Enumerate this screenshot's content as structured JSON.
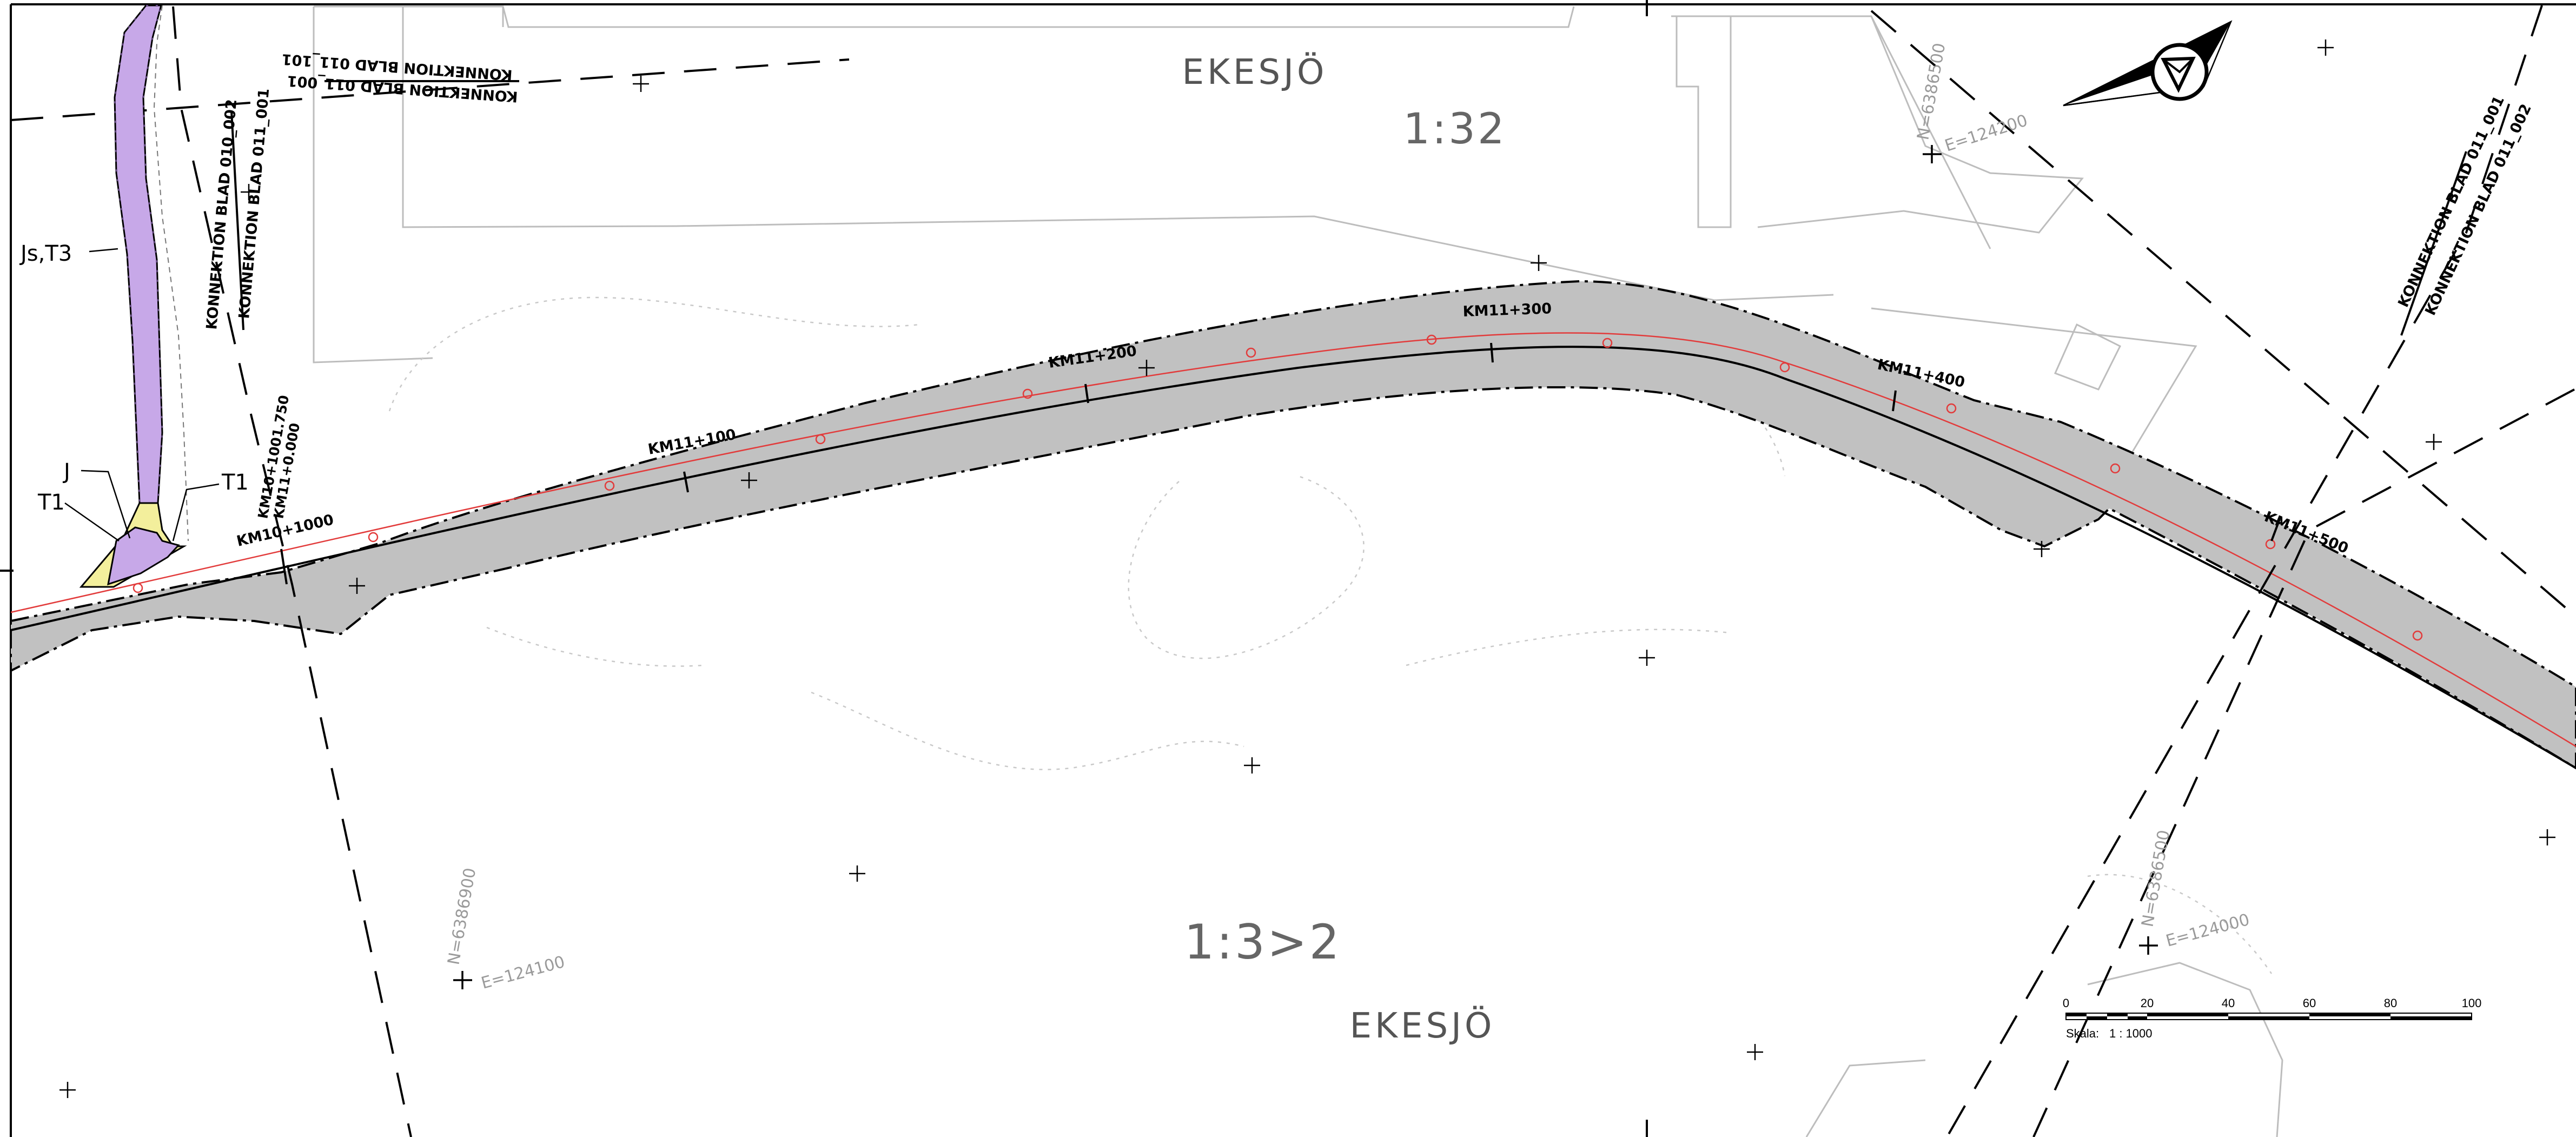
{
  "map": {
    "place_names": {
      "top": "EKESJÖ",
      "bottom": "EKESJÖ"
    },
    "slopes": {
      "top": "1:32",
      "bottom": "1:3>2"
    },
    "km_labels": [
      "KM10+1000",
      "KM11+100",
      "KM11+200",
      "KM11+300",
      "KM11+400",
      "KM11+500"
    ],
    "km_start_labels": {
      "prev": "KM10+1001.750",
      "next": "KM11+0.000"
    },
    "connections": {
      "top_left_a": "KONNEKTION BLAD 011_101",
      "top_left_b": "KONNEKTION BLAD 011_001",
      "vertical_a": "KONNEKTION BLAD 010_002",
      "vertical_b": "KONNEKTION BLAD 011_001",
      "right_a": "KONNEKTION BLAD 011_001",
      "right_b": "KONNEKTION BLAD 011_002"
    },
    "annotations": {
      "js_t3": "Js,T3",
      "j": "J",
      "t1_left": "T1",
      "t1_right": "T1"
    },
    "grid_labels": {
      "n_top_right": "N=6386500",
      "e_top_right": "E=124200",
      "n_bottom_left": "N=6386900",
      "e_bottom_left": "E=124100",
      "n_bottom_right": "N=6386500",
      "e_bottom_right": "E=124000"
    },
    "scale_bar": {
      "ticks": [
        "0",
        "20",
        "40",
        "60",
        "80",
        "100"
      ],
      "label": "Skala:",
      "ratio": "1 : 1000"
    },
    "colors": {
      "road_fill": "#c1c1c1",
      "centerline": "#000000",
      "offset_line": "#e23b3b",
      "purple_area": "#c7a8e8",
      "yellow_area": "#f3ef9c"
    }
  }
}
